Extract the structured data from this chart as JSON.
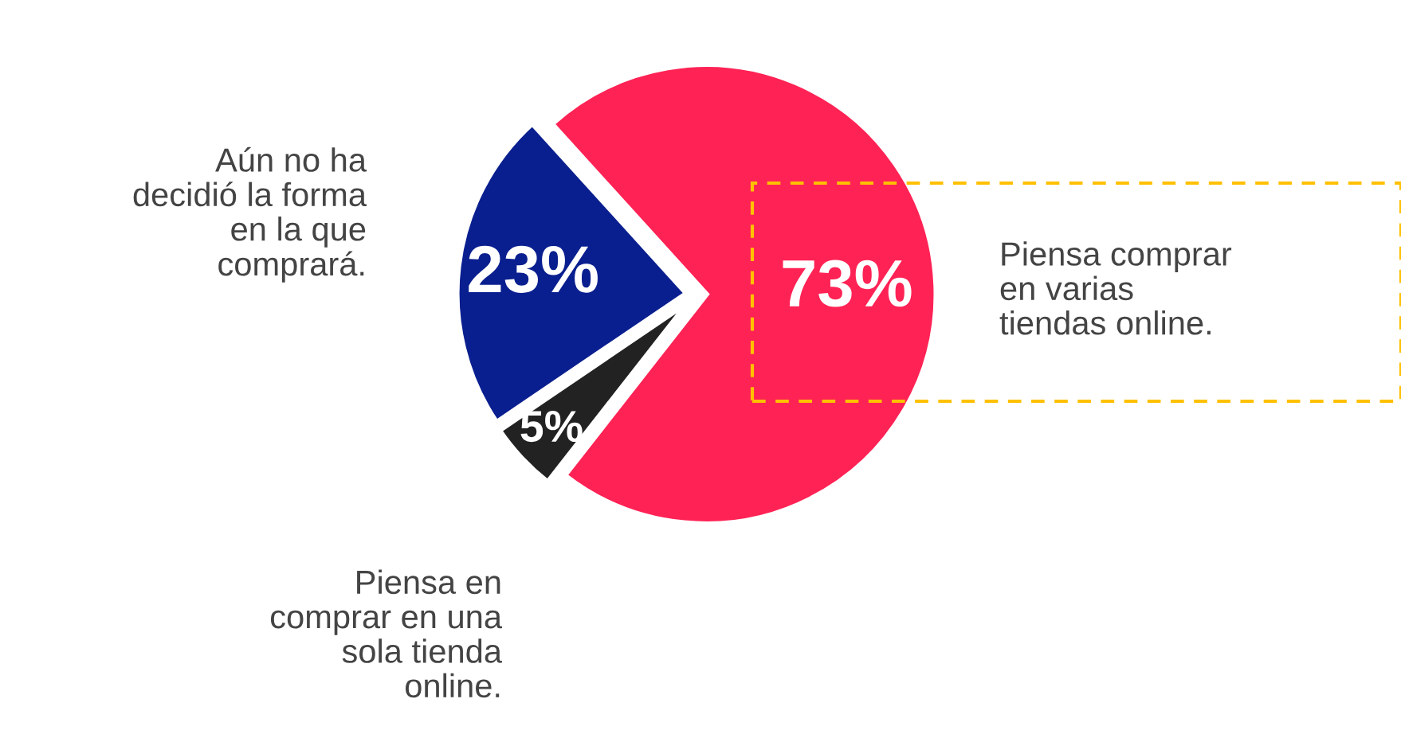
{
  "chart_data": {
    "type": "pie",
    "categories": [
      "Piensa comprar\nen varias\ntiendas online.",
      "Aún no ha\ndecidió la forma\nen la que\ncomprará.",
      "Piensa en\ncomprar en una\nsola tienda\nonline."
    ],
    "values": [
      73,
      23,
      5
    ],
    "colors": [
      "#ff2255",
      "#0a1f8f",
      "#222222"
    ],
    "value_labels": [
      "73%",
      "23%",
      "5%"
    ],
    "legend": false
  }
}
